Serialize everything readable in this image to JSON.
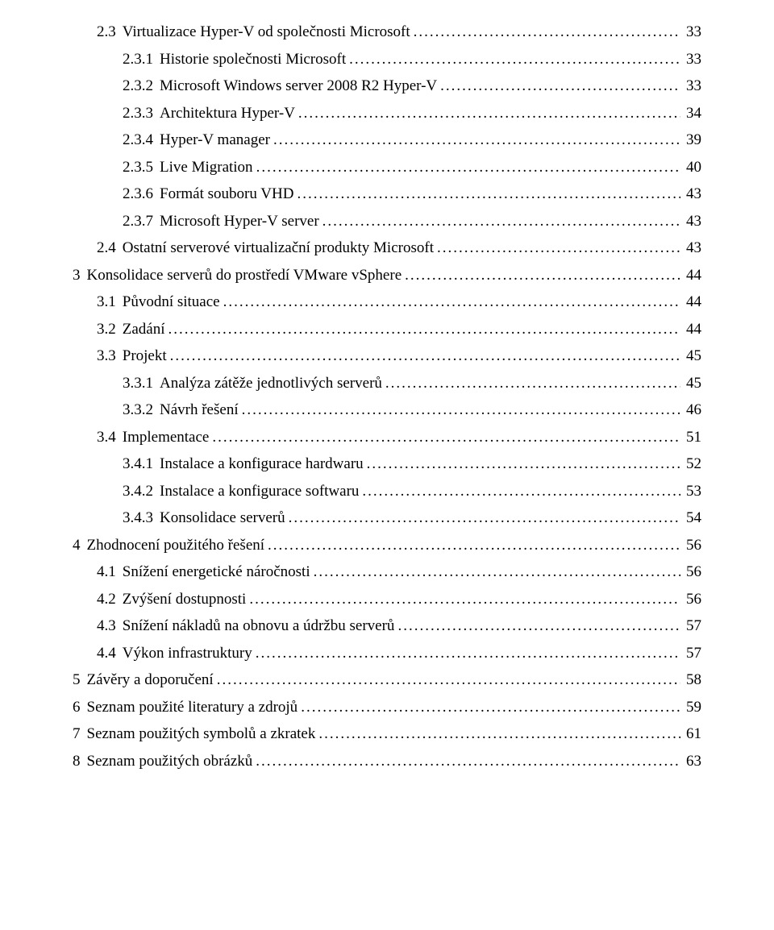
{
  "toc": [
    {
      "num": "2.3",
      "label": "Virtualizace Hyper-V od společnosti Microsoft",
      "page": "33",
      "indent": 1
    },
    {
      "num": "2.3.1",
      "label": "Historie společnosti Microsoft",
      "page": "33",
      "indent": 3
    },
    {
      "num": "2.3.2",
      "label": "Microsoft Windows server 2008 R2 Hyper-V",
      "page": "33",
      "indent": 3
    },
    {
      "num": "2.3.3",
      "label": "Architektura Hyper-V",
      "page": "34",
      "indent": 3
    },
    {
      "num": "2.3.4",
      "label": "Hyper-V manager",
      "page": "39",
      "indent": 3
    },
    {
      "num": "2.3.5",
      "label": "Live Migration",
      "page": "40",
      "indent": 3
    },
    {
      "num": "2.3.6",
      "label": "Formát souboru VHD",
      "page": "43",
      "indent": 3
    },
    {
      "num": "2.3.7",
      "label": "Microsoft Hyper-V server",
      "page": "43",
      "indent": 3
    },
    {
      "num": "2.4",
      "label": "Ostatní serverové virtualizační produkty Microsoft",
      "page": "43",
      "indent": 1
    },
    {
      "num": "3",
      "label": "Konsolidace serverů do prostředí VMware vSphere",
      "page": "44",
      "indent": 0
    },
    {
      "num": "3.1",
      "label": "Původní situace",
      "page": "44",
      "indent": 1
    },
    {
      "num": "3.2",
      "label": "Zadání",
      "page": "44",
      "indent": 1
    },
    {
      "num": "3.3",
      "label": "Projekt",
      "page": "45",
      "indent": 1
    },
    {
      "num": "3.3.1",
      "label": "Analýza zátěže jednotlivých serverů",
      "page": "45",
      "indent": 3
    },
    {
      "num": "3.3.2",
      "label": "Návrh řešení",
      "page": "46",
      "indent": 3
    },
    {
      "num": "3.4",
      "label": "Implementace",
      "page": "51",
      "indent": 1
    },
    {
      "num": "3.4.1",
      "label": "Instalace a konfigurace hardwaru",
      "page": "52",
      "indent": 3
    },
    {
      "num": "3.4.2",
      "label": "Instalace a konfigurace softwaru",
      "page": "53",
      "indent": 3
    },
    {
      "num": "3.4.3",
      "label": "Konsolidace serverů",
      "page": "54",
      "indent": 3
    },
    {
      "num": "4",
      "label": "Zhodnocení použitého řešení",
      "page": "56",
      "indent": 0
    },
    {
      "num": "4.1",
      "label": "Snížení energetické náročnosti",
      "page": "56",
      "indent": 1
    },
    {
      "num": "4.2",
      "label": "Zvýšení dostupnosti",
      "page": "56",
      "indent": 1
    },
    {
      "num": "4.3",
      "label": "Snížení nákladů na obnovu a údržbu serverů",
      "page": "57",
      "indent": 1
    },
    {
      "num": "4.4",
      "label": "Výkon infrastruktury",
      "page": "57",
      "indent": 1
    },
    {
      "num": "5",
      "label": "Závěry a doporučení",
      "page": "58",
      "indent": 0
    },
    {
      "num": "6",
      "label": "Seznam použité literatury a zdrojů",
      "page": "59",
      "indent": 0
    },
    {
      "num": "7",
      "label": "Seznam použitých symbolů a zkratek",
      "page": "61",
      "indent": 0
    },
    {
      "num": "8",
      "label": "Seznam použitých obrázků",
      "page": "63",
      "indent": 0
    }
  ],
  "style": {
    "font_family": "Times New Roman",
    "font_size_pt": 14,
    "text_color": "#000000",
    "background_color": "#ffffff",
    "leader_char": "."
  }
}
